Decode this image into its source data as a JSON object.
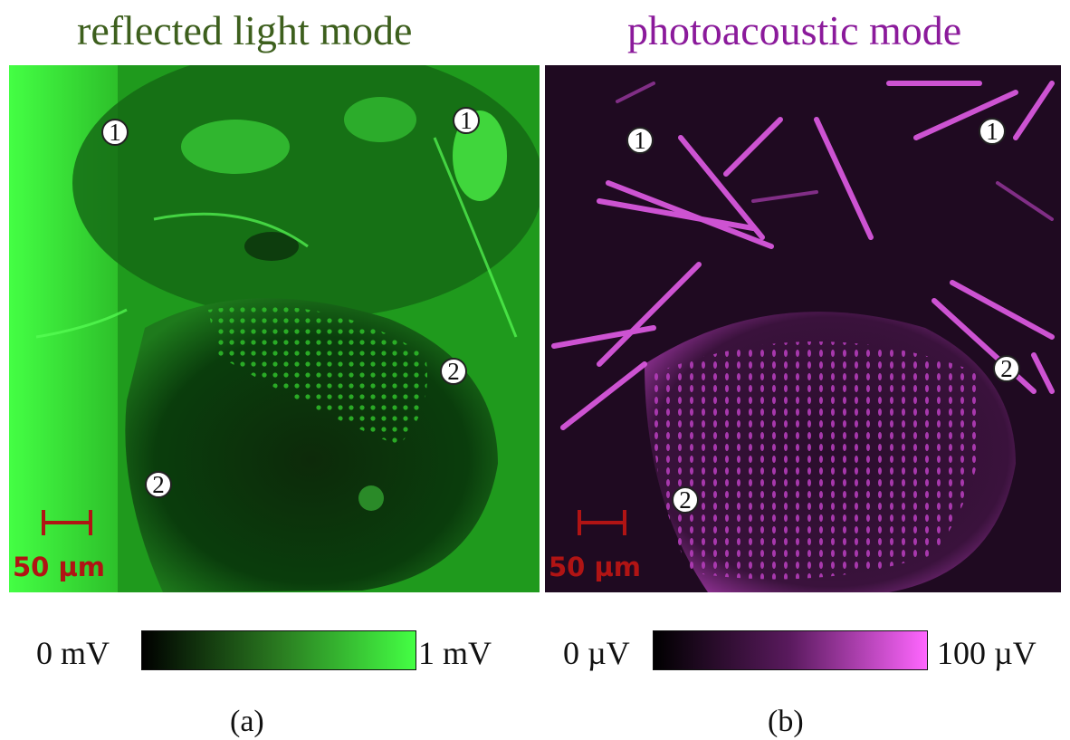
{
  "panel_a": {
    "title": "reflected light mode",
    "scale_bar_label": "50 µm",
    "markers": [
      "1",
      "1",
      "2",
      "2"
    ],
    "colorbar": {
      "min_label": "0 mV",
      "max_label": "1 mV",
      "colors": [
        "#000000",
        "#44ff44"
      ]
    },
    "caption": "(a)"
  },
  "panel_b": {
    "title": "photoacoustic mode",
    "scale_bar_label": "50 µm",
    "markers": [
      "1",
      "1",
      "2",
      "2"
    ],
    "colorbar": {
      "min_label": "0 µV",
      "max_label": "100 µV",
      "colors": [
        "#000000",
        "#ff66ff"
      ]
    },
    "caption": "(b)"
  },
  "colors": {
    "title_a": "#3d5f1d",
    "title_b": "#8b1a9b",
    "scale_bar": "#b01414"
  }
}
